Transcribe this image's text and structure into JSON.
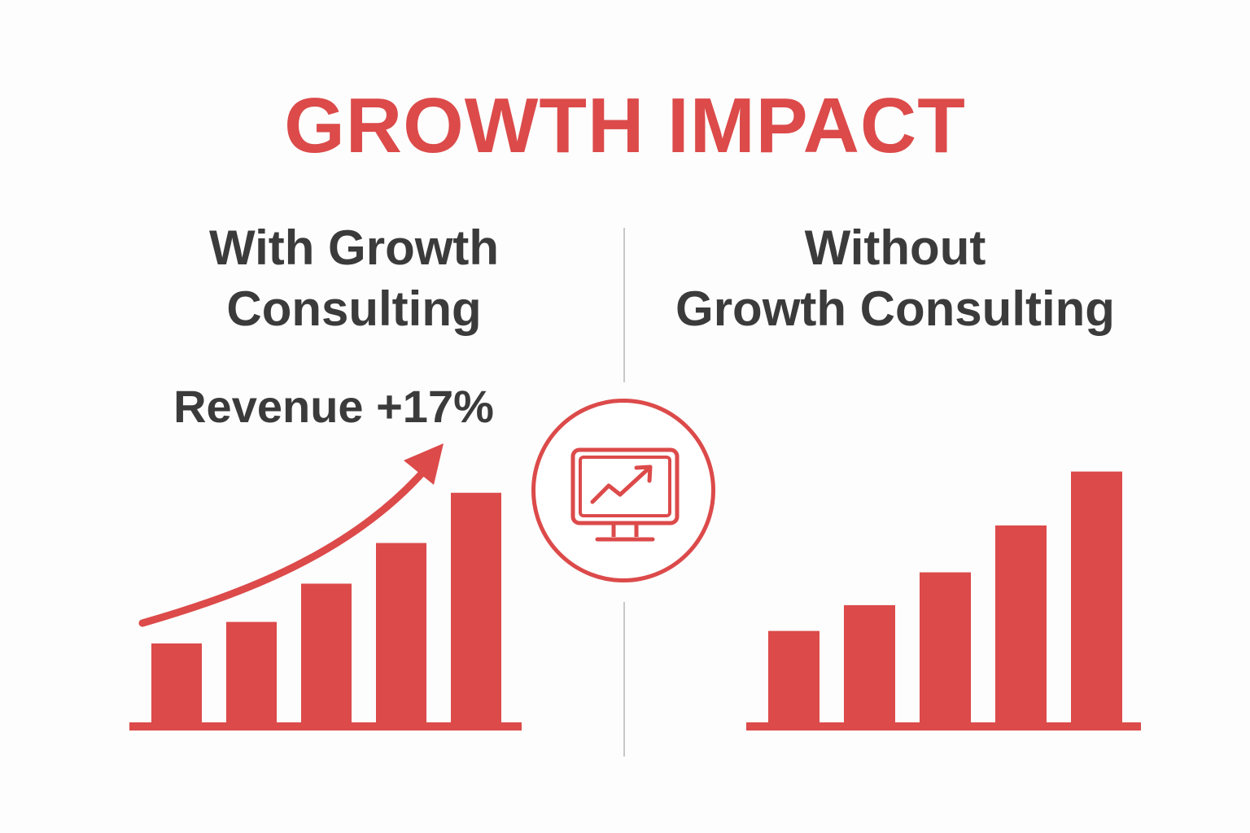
{
  "title": "GROWTH IMPACT",
  "colors": {
    "accent": "#dc4a4a",
    "heading_text": "#3b3b3b",
    "divider": "#c8c8c8",
    "background": "#fdfdfd"
  },
  "left_panel": {
    "heading_line1": "With Growth",
    "heading_line2": "Consulting",
    "annotation": "Revenue +17%"
  },
  "right_panel": {
    "heading_line1": "Without",
    "heading_line2": "Growth Consulting"
  },
  "center_icon": "monitor-trend-icon",
  "chart_data": [
    {
      "type": "bar",
      "panel": "With Growth Consulting",
      "values": [
        33,
        42,
        58,
        75,
        96
      ],
      "ylim": [
        0,
        100
      ],
      "trend_arrow": true,
      "grid": false,
      "axis_labels": false
    },
    {
      "type": "bar",
      "panel": "Without Growth Consulting",
      "values": [
        39,
        50,
        64,
        84,
        107
      ],
      "ylim": [
        0,
        110
      ],
      "trend_arrow": false,
      "grid": false,
      "axis_labels": false
    }
  ]
}
